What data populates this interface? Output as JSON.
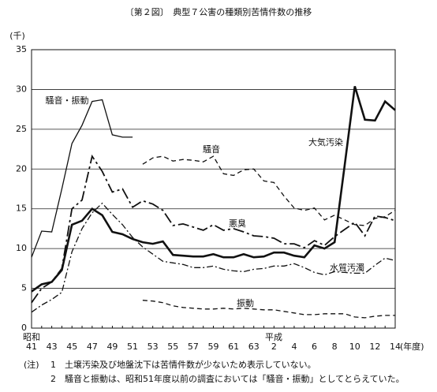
{
  "chart_data": {
    "type": "line",
    "title": "〔第２図〕　典型７公害の種類別苦情件数の推移",
    "y_unit": "(千)",
    "x_unit": "(年度)",
    "era_labels": [
      "昭和",
      "平成"
    ],
    "categories": [
      "41",
      null,
      "43",
      null,
      "45",
      null,
      "47",
      null,
      "49",
      null,
      "51",
      null,
      "53",
      null,
      "55",
      null,
      "57",
      null,
      "59",
      null,
      "61",
      null,
      "63",
      null,
      "2",
      null,
      "4",
      null,
      "6",
      null,
      "8",
      null,
      "10",
      null,
      "12",
      null,
      "14"
    ],
    "ylim": [
      0,
      35
    ],
    "yticks": [
      0,
      5,
      10,
      15,
      20,
      25,
      30,
      35
    ],
    "grid": true,
    "color": "#111111",
    "series": [
      {
        "name": "騒音・振動",
        "values": [
          8.9,
          12.2,
          12.1,
          17.5,
          23.2,
          25.5,
          28.5,
          28.7,
          24.3,
          24.0,
          24.0,
          null,
          null,
          null,
          null,
          null,
          null,
          null,
          null,
          null,
          null,
          null,
          null,
          null,
          null,
          null,
          null,
          null,
          null,
          null,
          null,
          null,
          null,
          null,
          null,
          null,
          null
        ]
      },
      {
        "name": "騒音",
        "values": [
          null,
          null,
          null,
          null,
          null,
          null,
          null,
          null,
          null,
          null,
          null,
          20.6,
          21.4,
          21.6,
          21.0,
          21.2,
          21.1,
          20.9,
          21.6,
          19.4,
          19.2,
          19.9,
          20.0,
          18.5,
          18.3,
          16.6,
          15.1,
          14.8,
          15.1,
          13.6,
          14.2,
          13.6,
          13.0,
          12.9,
          13.8,
          14.0,
          14.8
        ]
      },
      {
        "name": "大気汚染",
        "values": [
          4.6,
          5.5,
          5.8,
          7.3,
          13.0,
          13.5,
          15.0,
          14.2,
          12.1,
          11.8,
          11.2,
          10.8,
          10.6,
          10.9,
          9.2,
          9.1,
          9.0,
          9.0,
          9.3,
          8.9,
          8.9,
          9.3,
          8.9,
          9.0,
          9.5,
          9.5,
          9.1,
          8.9,
          10.4,
          10.0,
          10.8,
          20.5,
          30.4,
          26.2,
          26.1,
          28.5,
          27.4
        ]
      },
      {
        "name": "悪臭",
        "values": [
          3.2,
          5.0,
          5.8,
          7.5,
          15.0,
          16.1,
          21.6,
          19.7,
          17.1,
          17.5,
          15.2,
          16.0,
          15.6,
          14.8,
          12.9,
          13.1,
          12.7,
          12.3,
          13.0,
          12.3,
          12.5,
          12.1,
          11.6,
          11.5,
          11.3,
          10.6,
          10.6,
          10.1,
          11.0,
          10.4,
          11.5,
          12.4,
          13.3,
          11.6,
          14.1,
          13.9,
          13.5
        ]
      },
      {
        "name": "水質汚濁",
        "values": [
          2.0,
          2.9,
          3.6,
          4.5,
          9.6,
          12.5,
          14.5,
          15.7,
          14.3,
          13.0,
          11.4,
          10.2,
          9.3,
          8.4,
          8.2,
          8.0,
          7.6,
          7.6,
          7.8,
          7.4,
          7.2,
          7.1,
          7.4,
          7.5,
          7.8,
          7.8,
          8.1,
          7.6,
          7.0,
          6.7,
          7.1,
          7.0,
          6.9,
          6.9,
          7.9,
          8.8,
          8.5
        ]
      },
      {
        "name": "振動",
        "values": [
          null,
          null,
          null,
          null,
          null,
          null,
          null,
          null,
          null,
          null,
          null,
          3.5,
          3.4,
          3.2,
          2.8,
          2.6,
          2.5,
          2.4,
          2.4,
          2.5,
          2.4,
          2.5,
          2.4,
          2.3,
          2.3,
          2.1,
          1.9,
          1.7,
          1.7,
          1.8,
          1.8,
          1.8,
          1.4,
          1.3,
          1.5,
          1.6,
          1.6
        ]
      }
    ],
    "notes_label": "(注)",
    "notes": [
      "1　土壌汚染及び地盤沈下は苦情件数が少ないため表示していない。",
      "2　騒音と振動は、昭和51年度以前の調査においては「騒音・振動」としてとらえていた。"
    ]
  }
}
